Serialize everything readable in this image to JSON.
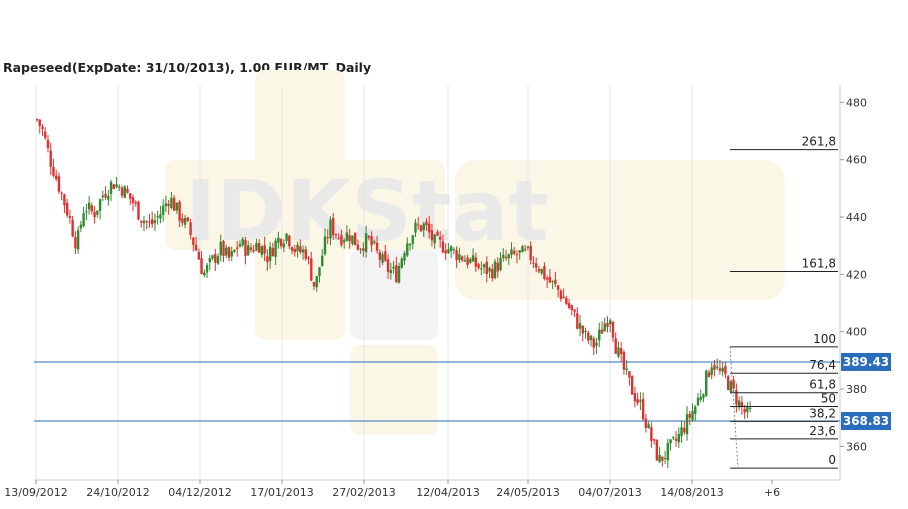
{
  "title": "Rapeseed(ExpDate: 31/10/2013), 1.00 EUR/MT, Daily",
  "watermark": "IDKStat",
  "colors": {
    "up": "#2e8b2e",
    "down": "#e03030",
    "hline": "#2a6ebb",
    "grid": "#e4e4e4",
    "tag": "#2a6ebb"
  },
  "chart_data": {
    "type": "candlestick",
    "title": "Rapeseed(ExpDate: 31/10/2013), 1.00 EUR/MT, Daily",
    "ylim": [
      350,
      485
    ],
    "y_ticks": [
      360,
      380,
      400,
      420,
      440,
      460,
      480
    ],
    "x_ticks": [
      "13/09/2012",
      "24/10/2012",
      "04/12/2012",
      "17/01/2013",
      "27/02/2013",
      "12/04/2013",
      "24/05/2013",
      "04/07/2013",
      "14/08/2013",
      "+6"
    ],
    "grid": "vertical",
    "close_path": [
      [
        0,
        474
      ],
      [
        3,
        470
      ],
      [
        7,
        460
      ],
      [
        12,
        450
      ],
      [
        17,
        440
      ],
      [
        21,
        430
      ],
      [
        25,
        444
      ],
      [
        30,
        441
      ],
      [
        35,
        448
      ],
      [
        40,
        452
      ],
      [
        45,
        450
      ],
      [
        50,
        446
      ],
      [
        55,
        440
      ],
      [
        60,
        437
      ],
      [
        65,
        441
      ],
      [
        70,
        447
      ],
      [
        75,
        441
      ],
      [
        80,
        436
      ],
      [
        85,
        427
      ],
      [
        88,
        420
      ],
      [
        92,
        424
      ],
      [
        97,
        429
      ],
      [
        102,
        425
      ],
      [
        107,
        431
      ],
      [
        112,
        428
      ],
      [
        117,
        431
      ],
      [
        122,
        426
      ],
      [
        127,
        432
      ],
      [
        132,
        434
      ],
      [
        137,
        428
      ],
      [
        142,
        428
      ],
      [
        147,
        415
      ],
      [
        150,
        425
      ],
      [
        155,
        437
      ],
      [
        160,
        433
      ],
      [
        165,
        434
      ],
      [
        170,
        430
      ],
      [
        175,
        432
      ],
      [
        180,
        427
      ],
      [
        185,
        422
      ],
      [
        190,
        420
      ],
      [
        195,
        431
      ],
      [
        200,
        436
      ],
      [
        205,
        437
      ],
      [
        210,
        431
      ],
      [
        215,
        430
      ],
      [
        220,
        428
      ],
      [
        225,
        426
      ],
      [
        230,
        424
      ],
      [
        235,
        422
      ],
      [
        240,
        421
      ],
      [
        245,
        424
      ],
      [
        250,
        426
      ],
      [
        255,
        427
      ],
      [
        260,
        427
      ],
      [
        265,
        423
      ],
      [
        270,
        418
      ],
      [
        275,
        415
      ],
      [
        280,
        410
      ],
      [
        285,
        404
      ],
      [
        290,
        398
      ],
      [
        295,
        395
      ],
      [
        300,
        403
      ],
      [
        303,
        406
      ],
      [
        306,
        395
      ],
      [
        310,
        387
      ],
      [
        315,
        379
      ],
      [
        320,
        373
      ],
      [
        323,
        366
      ],
      [
        326,
        360
      ],
      [
        329,
        355
      ],
      [
        333,
        358
      ],
      [
        338,
        362
      ],
      [
        343,
        368
      ],
      [
        348,
        374
      ],
      [
        353,
        382
      ],
      [
        357,
        390
      ],
      [
        360,
        386
      ],
      [
        364,
        384
      ],
      [
        368,
        379
      ],
      [
        372,
        374
      ],
      [
        375,
        371
      ],
      [
        378,
        372
      ]
    ],
    "horizontal_levels": [
      {
        "value": 389.43,
        "label": "389.43"
      },
      {
        "value": 368.83,
        "label": "368.83"
      }
    ],
    "fibonacci": [
      {
        "label": "261,8",
        "value": 463.5
      },
      {
        "label": "161,8",
        "value": 421.0
      },
      {
        "label": "100",
        "value": 394.7
      },
      {
        "label": "76,4",
        "value": 385.5
      },
      {
        "label": "61,8",
        "value": 378.7
      },
      {
        "label": "50",
        "value": 373.9
      },
      {
        "label": "38,2",
        "value": 368.7
      },
      {
        "label": "23,6",
        "value": 362.6
      },
      {
        "label": "0",
        "value": 352.4
      }
    ],
    "fib_line_days": [
      [
        347,
        368
      ],
      [
        348,
        368
      ],
      [
        350,
        368
      ],
      [
        352,
        368
      ],
      [
        353,
        368
      ],
      [
        354,
        368
      ],
      [
        355,
        368
      ],
      [
        356,
        368
      ],
      [
        357,
        368
      ]
    ]
  }
}
